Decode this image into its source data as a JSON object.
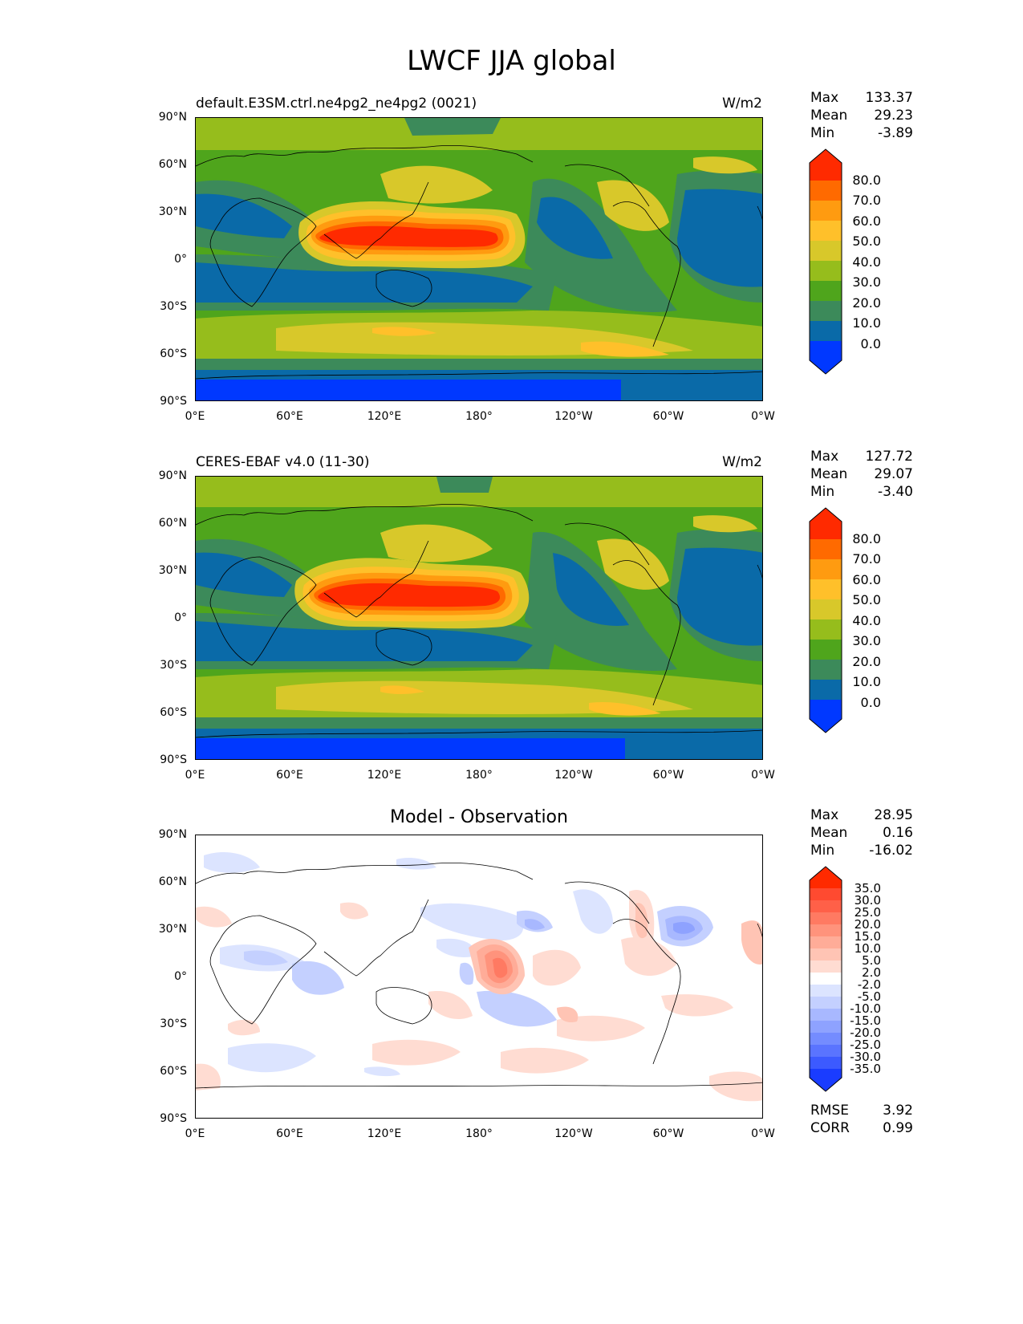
{
  "figure": {
    "title": "LWCF JJA global"
  },
  "chart_data": [
    {
      "type": "heatmap",
      "title": "default.E3SM.ctrl.ne4pg2_ne4pg2 (0021)",
      "units": "W/m2",
      "x_tick_labels": [
        "0°E",
        "60°E",
        "120°E",
        "180°",
        "120°W",
        "60°W",
        "0°W"
      ],
      "y_tick_labels": [
        "90°N",
        "60°N",
        "30°N",
        "0°",
        "30°S",
        "60°S",
        "90°S"
      ],
      "xlim": [
        0,
        360
      ],
      "ylim": [
        -90,
        90
      ],
      "stats": {
        "Max": "133.37",
        "Mean": "29.23",
        "Min": "-3.89"
      },
      "colorbar": {
        "levels": [
          "80.0",
          "70.0",
          "60.0",
          "50.0",
          "40.0",
          "30.0",
          "20.0",
          "10.0",
          "0.0"
        ],
        "colors": [
          "#ff2a00",
          "#ff6a00",
          "#ff9b10",
          "#ffc02a",
          "#d8c82a",
          "#96bd1c",
          "#4fa51c",
          "#3c8a5a",
          "#0a6aa8",
          "#0038ff"
        ]
      }
    },
    {
      "type": "heatmap",
      "title": "CERES-EBAF v4.0 (11-30)",
      "units": "W/m2",
      "x_tick_labels": [
        "0°E",
        "60°E",
        "120°E",
        "180°",
        "120°W",
        "60°W",
        "0°W"
      ],
      "y_tick_labels": [
        "90°N",
        "60°N",
        "30°N",
        "0°",
        "30°S",
        "60°S",
        "90°S"
      ],
      "xlim": [
        0,
        360
      ],
      "ylim": [
        -90,
        90
      ],
      "stats": {
        "Max": "127.72",
        "Mean": "29.07",
        "Min": "-3.40"
      },
      "colorbar": {
        "levels": [
          "80.0",
          "70.0",
          "60.0",
          "50.0",
          "40.0",
          "30.0",
          "20.0",
          "10.0",
          "0.0"
        ],
        "colors": [
          "#ff2a00",
          "#ff6a00",
          "#ff9b10",
          "#ffc02a",
          "#d8c82a",
          "#96bd1c",
          "#4fa51c",
          "#3c8a5a",
          "#0a6aa8",
          "#0038ff"
        ]
      }
    },
    {
      "type": "heatmap",
      "title": "Model - Observation",
      "x_tick_labels": [
        "0°E",
        "60°E",
        "120°E",
        "180°",
        "120°W",
        "60°W",
        "0°W"
      ],
      "y_tick_labels": [
        "90°N",
        "60°N",
        "30°N",
        "0°",
        "30°S",
        "60°S",
        "90°S"
      ],
      "xlim": [
        0,
        360
      ],
      "ylim": [
        -90,
        90
      ],
      "stats": {
        "Max": "28.95",
        "Mean": "0.16",
        "Min": "-16.02"
      },
      "metrics": {
        "RMSE": "3.92",
        "CORR": "0.99"
      },
      "colorbar": {
        "levels": [
          "35.0",
          "30.0",
          "25.0",
          "20.0",
          "15.0",
          "10.0",
          "5.0",
          "2.0",
          "-2.0",
          "-5.0",
          "-10.0",
          "-15.0",
          "-20.0",
          "-25.0",
          "-30.0",
          "-35.0"
        ],
        "colors": [
          "#ff2a00",
          "#ff4a30",
          "#ff6048",
          "#ff7a62",
          "#ff937c",
          "#ffac98",
          "#ffc4b4",
          "#ffdcd2",
          "#ffffff",
          "#dce4ff",
          "#c4d0ff",
          "#a8b8ff",
          "#8ea2ff",
          "#748cff",
          "#5a74ff",
          "#3c5aff",
          "#1a3cff"
        ]
      }
    }
  ]
}
